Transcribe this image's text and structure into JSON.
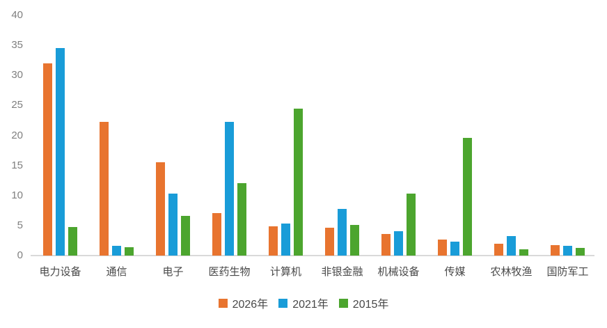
{
  "chart_data": {
    "type": "bar",
    "title": "",
    "xlabel": "",
    "ylabel": "",
    "categories": [
      "电力设备",
      "通信",
      "电子",
      "医药生物",
      "计算机",
      "非银金融",
      "机械设备",
      "传媒",
      "农林牧渔",
      "国防军工"
    ],
    "series": [
      {
        "name": "2026年",
        "color": "#E8742F",
        "values": [
          32.0,
          22.3,
          15.5,
          7.1,
          4.9,
          4.6,
          3.6,
          2.7,
          2.0,
          1.7
        ]
      },
      {
        "name": "2021年",
        "color": "#199CD8",
        "values": [
          34.5,
          1.6,
          10.3,
          22.3,
          5.3,
          7.8,
          4.1,
          2.3,
          3.2,
          1.6
        ]
      },
      {
        "name": "2015年",
        "color": "#4CA52E",
        "values": [
          4.8,
          1.4,
          6.6,
          12.1,
          24.5,
          5.1,
          10.3,
          19.6,
          1.0,
          1.3
        ]
      }
    ],
    "ylim": [
      0,
      40
    ],
    "yticks": [
      0,
      5,
      10,
      15,
      20,
      25,
      30,
      35,
      40
    ],
    "grid": false,
    "legend_position": "bottom"
  },
  "colors": {
    "background": "#FFFFFF",
    "axis_line": "#D9D9D9",
    "tick_label": "#7F7F7F",
    "category_label": "#484848"
  }
}
